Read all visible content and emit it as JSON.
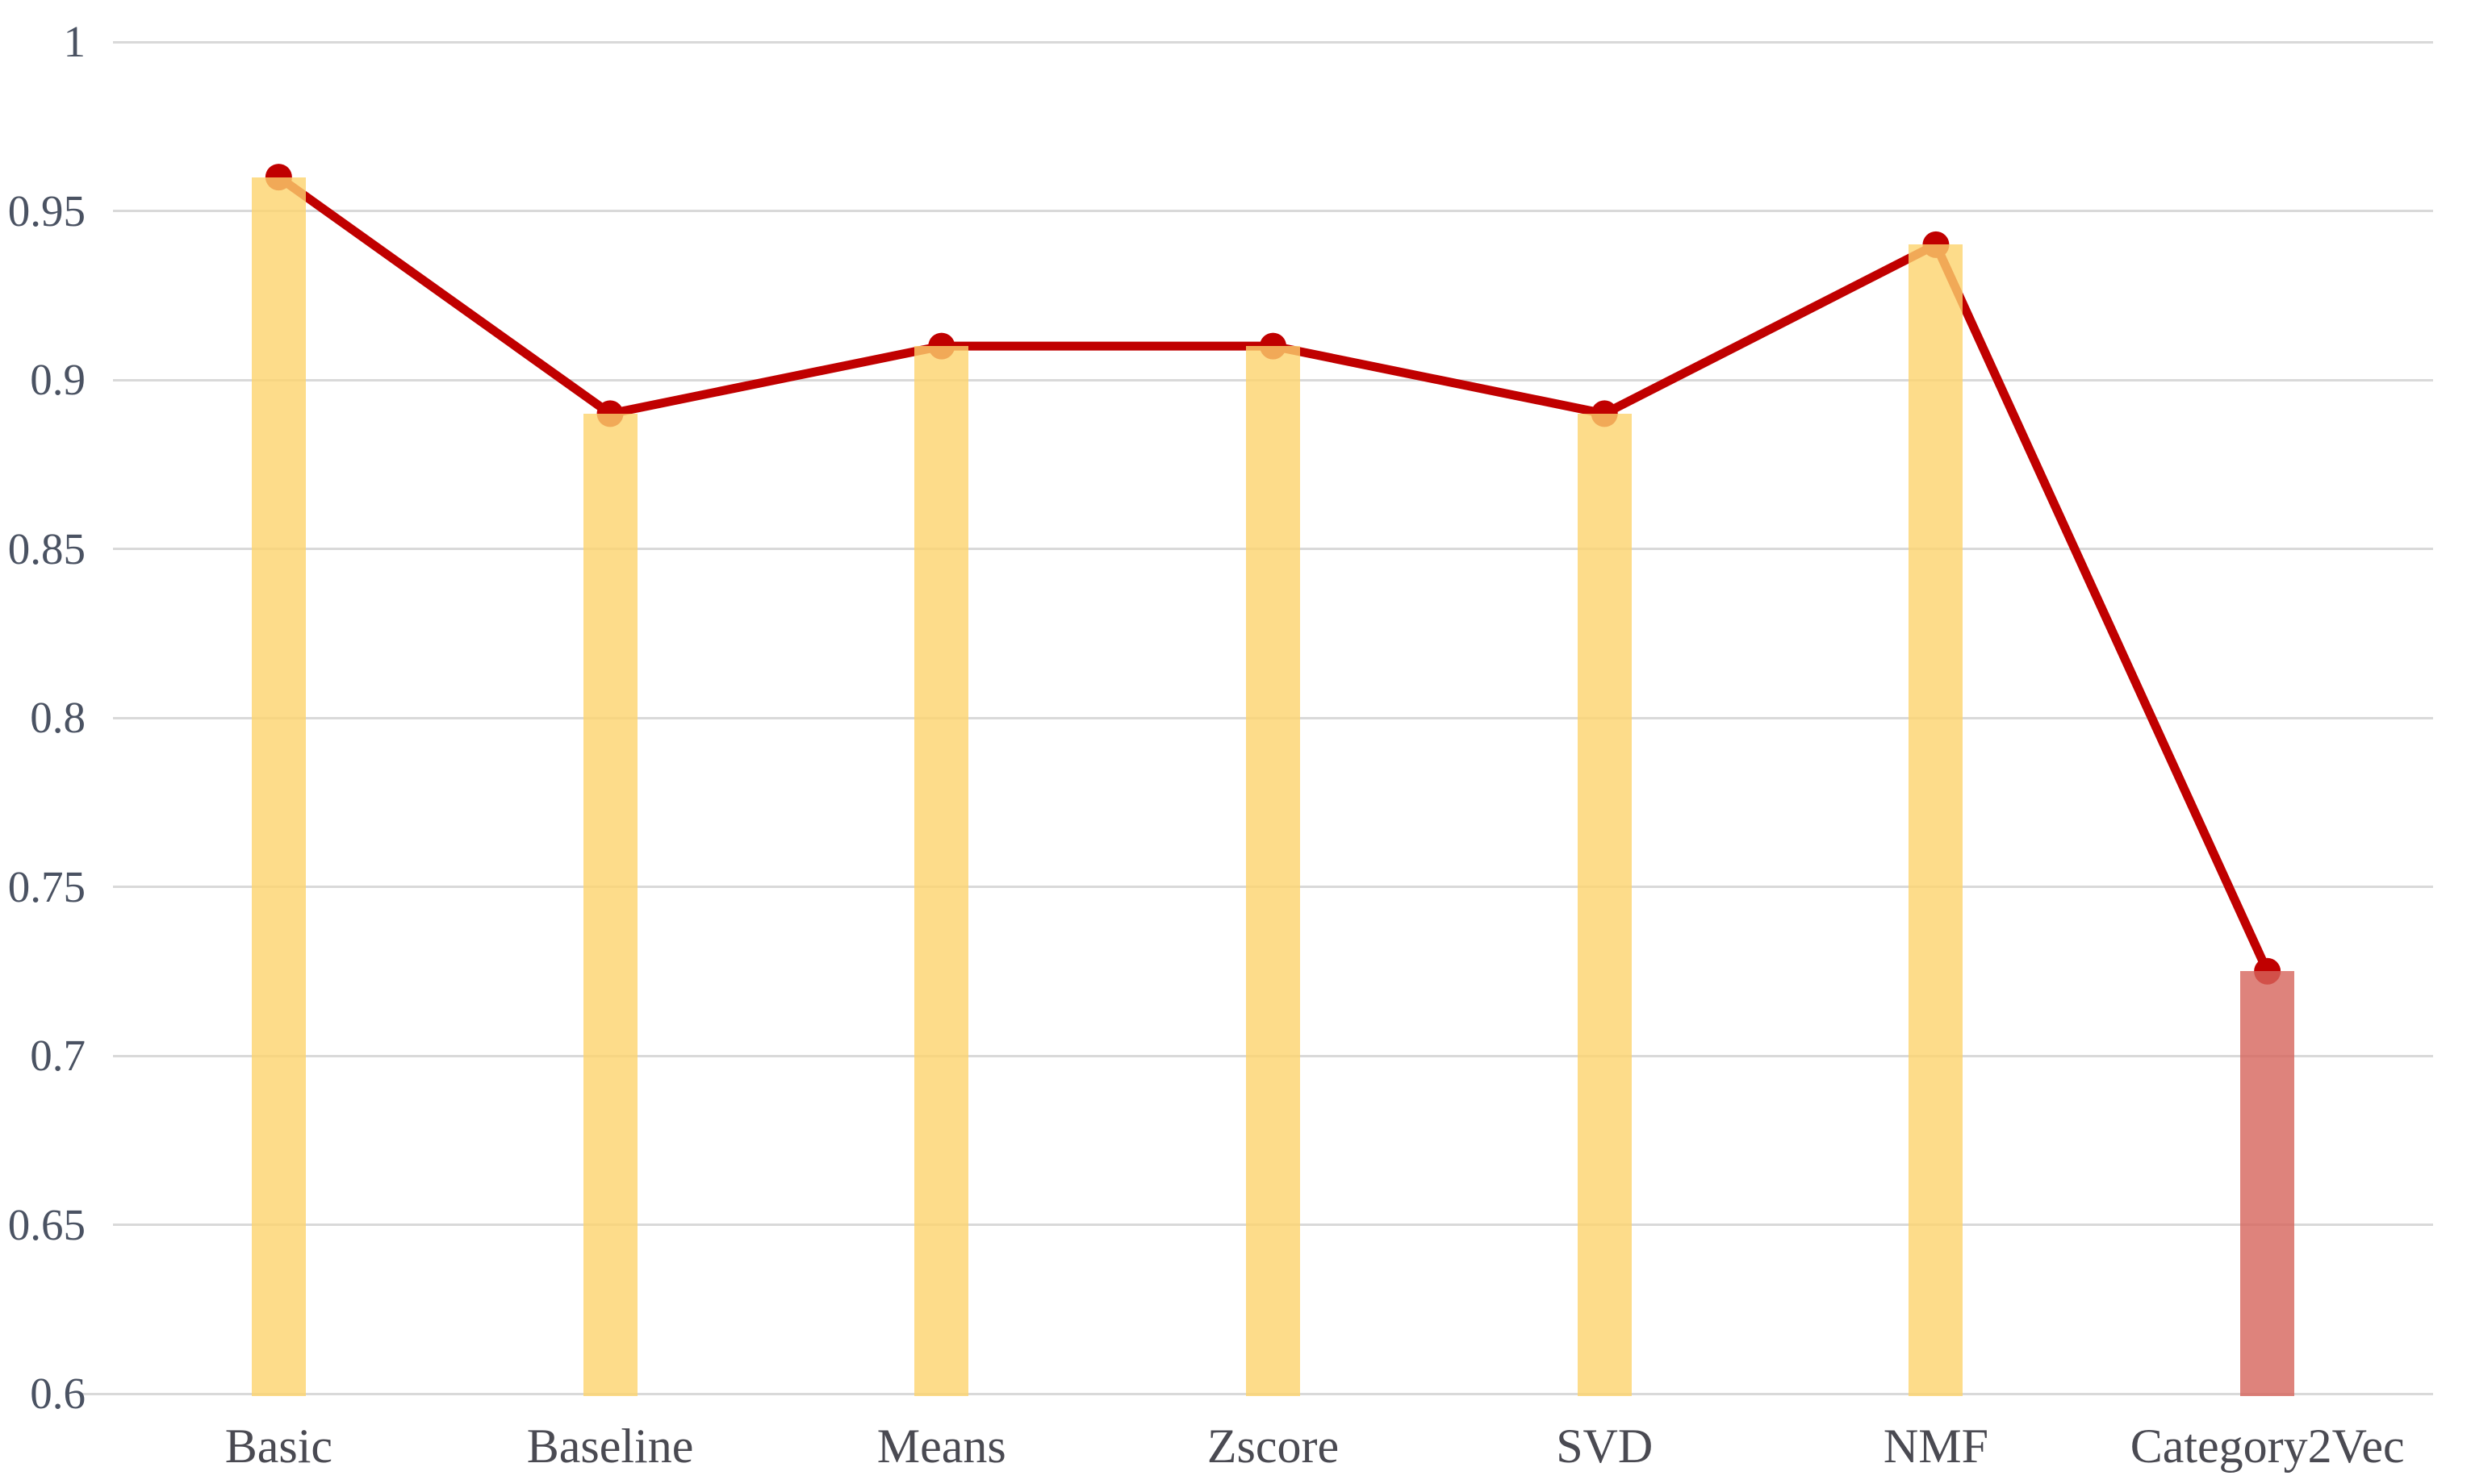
{
  "chart_data": {
    "type": "bar+line",
    "title": "",
    "categories": [
      "Basic",
      "Baseline",
      "Means",
      "Zscore",
      "SVD",
      "NMF",
      "Category2Vec"
    ],
    "series": [
      {
        "name": "score-bars",
        "type": "bar",
        "values": [
          0.96,
          0.89,
          0.91,
          0.91,
          0.89,
          0.94,
          0.725
        ]
      },
      {
        "name": "score-line",
        "type": "line",
        "values": [
          0.96,
          0.89,
          0.91,
          0.91,
          0.89,
          0.94,
          0.725
        ]
      }
    ],
    "ylim": [
      0.6,
      1.0
    ],
    "ytick_step": 0.05,
    "ytick_labels": [
      "1",
      "0.95",
      "0.9",
      "0.85",
      "0.8",
      "0.75",
      "0.7",
      "0.65",
      "0.6"
    ],
    "grid": true,
    "legend": false,
    "highlight_index": 6,
    "colors": {
      "bar_fill": "rgba(252,211,109,0.8)",
      "highlight_bar_fill": "rgba(214,100,91,0.8)",
      "line": "#C00000",
      "marker": "#C00000",
      "gridline": "#D9D9D9",
      "axis_line": "#D6D6D6",
      "tick_label": "#4A5262",
      "category_label": "#4A4A52"
    }
  }
}
